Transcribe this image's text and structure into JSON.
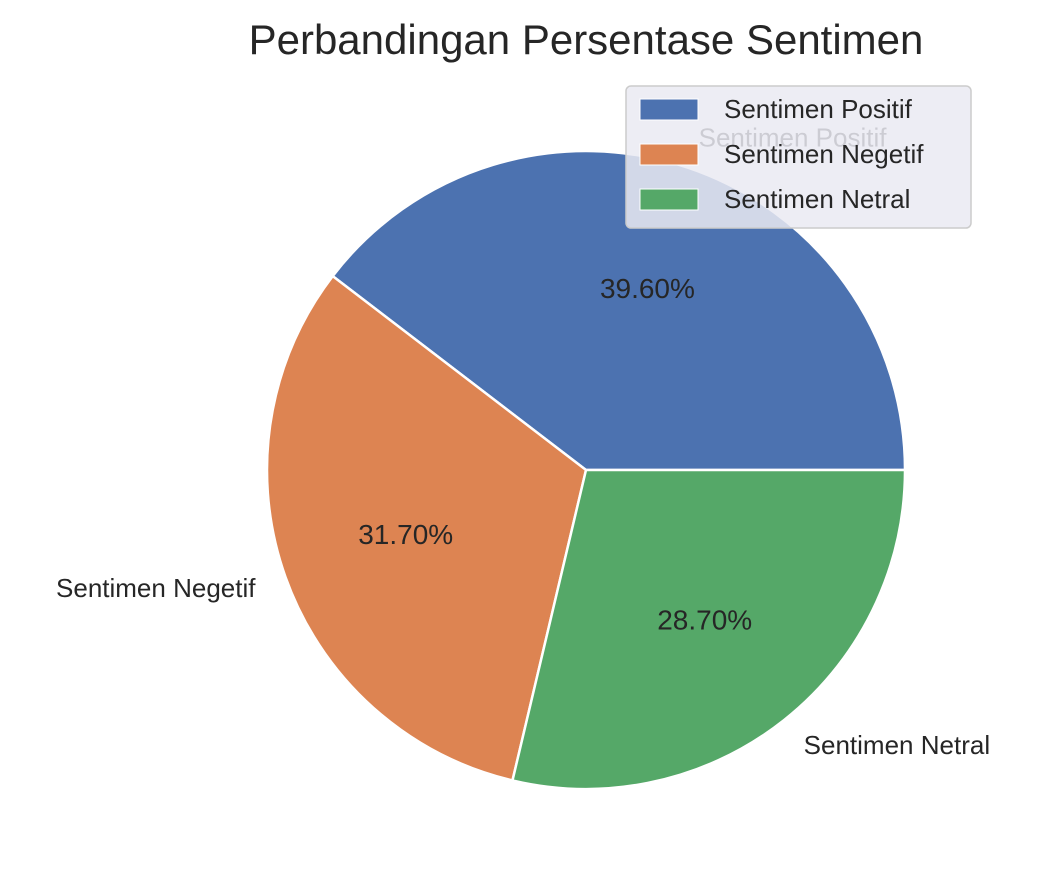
{
  "chart_data": {
    "type": "pie",
    "title": "Perbandingan Persentase Sentimen",
    "categories": [
      "Sentimen Positif",
      "Sentimen Negetif",
      "Sentimen Netral"
    ],
    "values": [
      39.6,
      31.7,
      28.7
    ],
    "value_labels": [
      "39.60%",
      "31.70%",
      "28.70%"
    ],
    "colors": [
      "#4c72b0",
      "#dd8452",
      "#55a868"
    ],
    "start_angle_deg": 0,
    "direction": "counterclockwise",
    "legend": {
      "placement": "top-right",
      "entries": [
        "Sentimen Positif",
        "Sentimen Negetif",
        "Sentimen Netral"
      ]
    }
  }
}
